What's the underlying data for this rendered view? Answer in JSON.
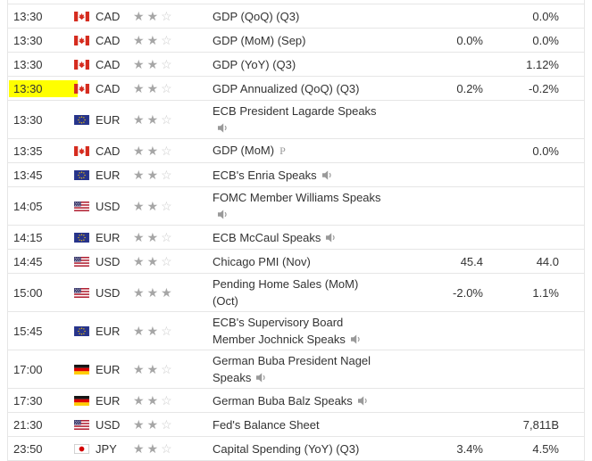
{
  "colors": {
    "highlight": "#ffff00",
    "star_filled": "#a6a6a6",
    "star_empty": "#cccccc",
    "row_border": "#e6e6e6",
    "text": "#333333",
    "icon_gray": "#999999"
  },
  "icons": {
    "speaker": "speaker-icon",
    "prelim_marker": "P",
    "star_filled_glyph": "★",
    "star_empty_glyph": "☆"
  },
  "table": {
    "rows": [
      {
        "time": "13:30",
        "highlight": false,
        "flag": "canada",
        "currency": "CAD",
        "importance": 2,
        "event": "GDP (QoQ) (Q3)",
        "event_line2": "",
        "speaker": "none",
        "prelim": false,
        "actual": "",
        "forecast": "",
        "previous": "0.0%"
      },
      {
        "time": "13:30",
        "highlight": false,
        "flag": "canada",
        "currency": "CAD",
        "importance": 2,
        "event": "GDP (MoM) (Sep)",
        "event_line2": "",
        "speaker": "none",
        "prelim": false,
        "actual": "",
        "forecast": "0.0%",
        "previous": "0.0%"
      },
      {
        "time": "13:30",
        "highlight": false,
        "flag": "canada",
        "currency": "CAD",
        "importance": 2,
        "event": "GDP (YoY) (Q3)",
        "event_line2": "",
        "speaker": "none",
        "prelim": false,
        "actual": "",
        "forecast": "",
        "previous": "1.12%"
      },
      {
        "time": "13:30",
        "highlight": true,
        "flag": "canada",
        "currency": "CAD",
        "importance": 2,
        "event": "GDP Annualized (QoQ) (Q3)",
        "event_line2": "",
        "speaker": "none",
        "prelim": false,
        "actual": "",
        "forecast": "0.2%",
        "previous": "-0.2%"
      },
      {
        "time": "13:30",
        "highlight": false,
        "flag": "eu",
        "currency": "EUR",
        "importance": 2,
        "event": "ECB President Lagarde Speaks",
        "event_line2": "",
        "speaker": "line2",
        "prelim": false,
        "actual": "",
        "forecast": "",
        "previous": ""
      },
      {
        "time": "13:35",
        "highlight": false,
        "flag": "canada",
        "currency": "CAD",
        "importance": 2,
        "event": "GDP (MoM)",
        "event_line2": "",
        "speaker": "none",
        "prelim": true,
        "actual": "",
        "forecast": "",
        "previous": "0.0%"
      },
      {
        "time": "13:45",
        "highlight": false,
        "flag": "eu",
        "currency": "EUR",
        "importance": 2,
        "event": "ECB's Enria Speaks",
        "event_line2": "",
        "speaker": "inline",
        "prelim": false,
        "actual": "",
        "forecast": "",
        "previous": ""
      },
      {
        "time": "14:05",
        "highlight": false,
        "flag": "usa",
        "currency": "USD",
        "importance": 2,
        "event": "FOMC Member Williams Speaks",
        "event_line2": "",
        "speaker": "line2",
        "prelim": false,
        "actual": "",
        "forecast": "",
        "previous": ""
      },
      {
        "time": "14:15",
        "highlight": false,
        "flag": "eu",
        "currency": "EUR",
        "importance": 2,
        "event": "ECB McCaul Speaks",
        "event_line2": "",
        "speaker": "inline",
        "prelim": false,
        "actual": "",
        "forecast": "",
        "previous": ""
      },
      {
        "time": "14:45",
        "highlight": false,
        "flag": "usa",
        "currency": "USD",
        "importance": 2,
        "event": "Chicago PMI (Nov)",
        "event_line2": "",
        "speaker": "none",
        "prelim": false,
        "actual": "",
        "forecast": "45.4",
        "previous": "44.0"
      },
      {
        "time": "15:00",
        "highlight": false,
        "flag": "usa",
        "currency": "USD",
        "importance": 3,
        "event": "Pending Home Sales (MoM)",
        "event_line2": "(Oct)",
        "speaker": "none",
        "prelim": false,
        "actual": "",
        "forecast": "-2.0%",
        "previous": "1.1%"
      },
      {
        "time": "15:45",
        "highlight": false,
        "flag": "eu",
        "currency": "EUR",
        "importance": 2,
        "event": "ECB's Supervisory Board",
        "event_line2": "Member Jochnick Speaks",
        "speaker": "inline",
        "prelim": false,
        "actual": "",
        "forecast": "",
        "previous": ""
      },
      {
        "time": "17:00",
        "highlight": false,
        "flag": "germany",
        "currency": "EUR",
        "importance": 2,
        "event": "German Buba President Nagel",
        "event_line2": "Speaks",
        "speaker": "inline",
        "prelim": false,
        "actual": "",
        "forecast": "",
        "previous": ""
      },
      {
        "time": "17:30",
        "highlight": false,
        "flag": "germany",
        "currency": "EUR",
        "importance": 2,
        "event": "German Buba Balz Speaks",
        "event_line2": "",
        "speaker": "inline",
        "prelim": false,
        "actual": "",
        "forecast": "",
        "previous": ""
      },
      {
        "time": "21:30",
        "highlight": false,
        "flag": "usa",
        "currency": "USD",
        "importance": 2,
        "event": "Fed's Balance Sheet",
        "event_line2": "",
        "speaker": "none",
        "prelim": false,
        "actual": "",
        "forecast": "",
        "previous": "7,811B"
      },
      {
        "time": "23:50",
        "highlight": false,
        "flag": "japan",
        "currency": "JPY",
        "importance": 2,
        "event": "Capital Spending (YoY) (Q3)",
        "event_line2": "",
        "speaker": "none",
        "prelim": false,
        "actual": "",
        "forecast": "3.4%",
        "previous": "4.5%"
      }
    ]
  }
}
